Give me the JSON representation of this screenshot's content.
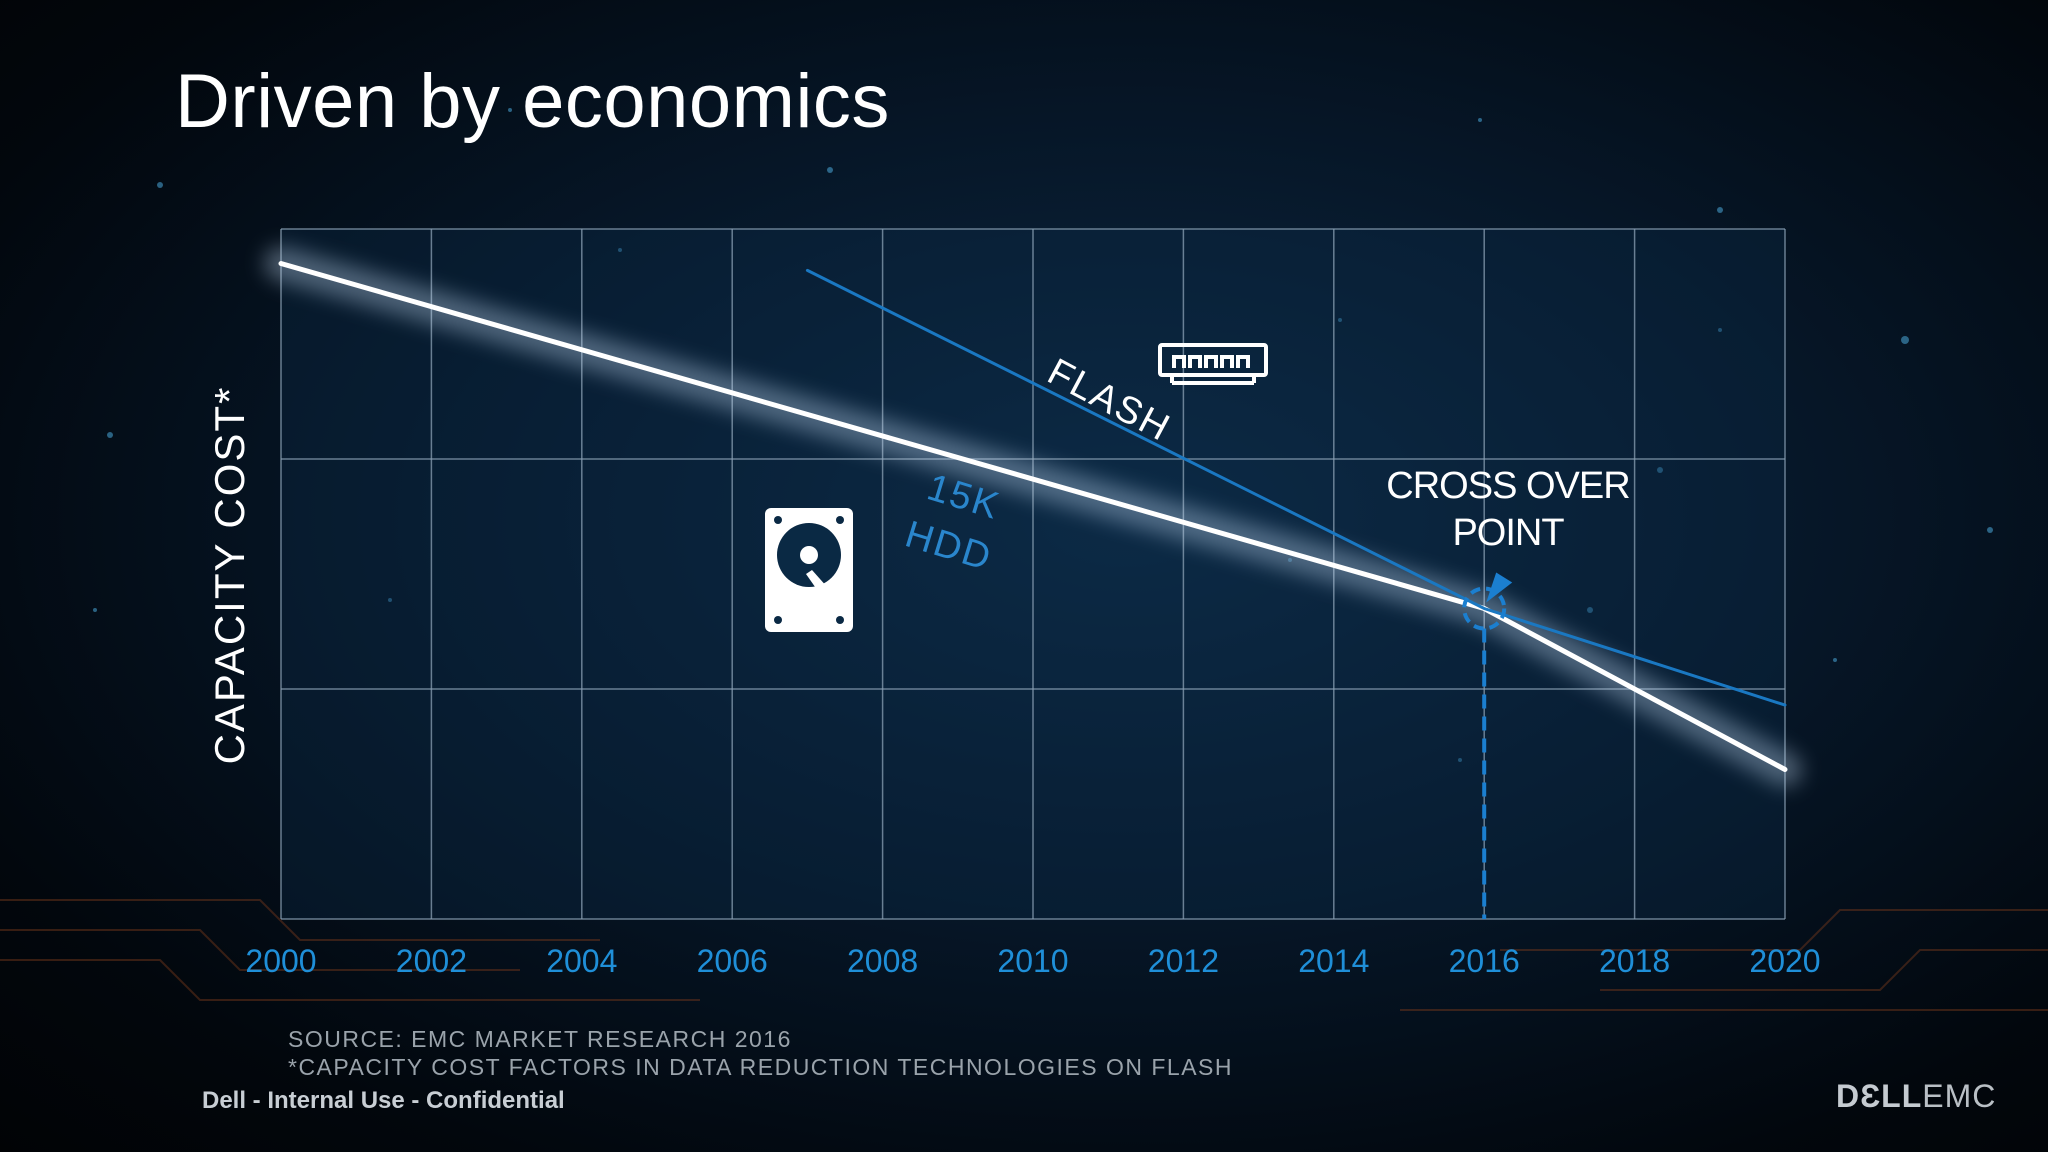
{
  "slide": {
    "title": "Driven by economics",
    "source_line1": "SOURCE: EMC MARKET RESEARCH 2016",
    "source_line2": "*CAPACITY COST FACTORS IN DATA REDUCTION TECHNOLOGIES ON FLASH",
    "confidential": "Dell - Internal Use - Confidential",
    "logo_dell": "DƐLL",
    "logo_emc": "EMC"
  },
  "chart_data": {
    "type": "line",
    "title": "",
    "xlabel": "",
    "ylabel": "CAPACITY COST*",
    "xlim": [
      2000,
      2020
    ],
    "ylim": [
      0,
      3
    ],
    "grid": true,
    "x_ticks": [
      "2000",
      "2002",
      "2004",
      "2006",
      "2008",
      "2010",
      "2012",
      "2014",
      "2016",
      "2018",
      "2020"
    ],
    "series": [
      {
        "name": "15K\nHDD",
        "color": "#ffffff",
        "points": [
          [
            2000,
            2.85
          ],
          [
            2016,
            1.35
          ],
          [
            2020,
            0.65
          ]
        ]
      },
      {
        "name": "FLASH",
        "color": "#1a78c2",
        "points": [
          [
            2007,
            2.82
          ],
          [
            2016,
            1.35
          ],
          [
            2020,
            0.93
          ]
        ]
      }
    ],
    "annotations": {
      "crossover_label_line1": "CROSS OVER",
      "crossover_label_line2": "POINT",
      "crossover_x": 2016,
      "crossover_y": 1.35,
      "hdd_label_line1": "15K",
      "hdd_label_line2": "HDD",
      "flash_label": "FLASH"
    },
    "colors": {
      "axis_text": "#1f8fd8",
      "grid": "#8aa0b4",
      "hdd": "#ffffff",
      "flash": "#1a78c2",
      "accent": "#1b7fd0"
    },
    "icons": [
      "hard-drive-icon",
      "flash-module-icon"
    ]
  }
}
